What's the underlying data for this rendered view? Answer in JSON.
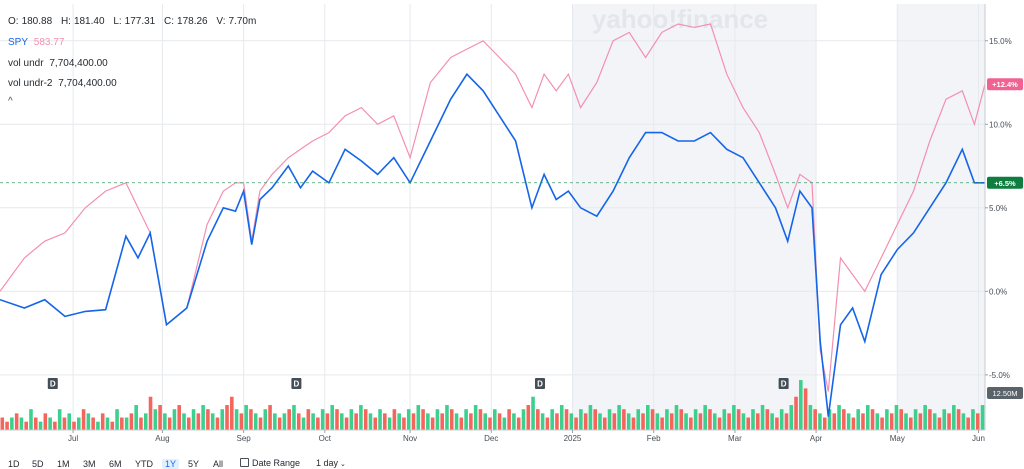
{
  "watermark": "yahoo!finance",
  "header": {
    "ohlc": [
      {
        "label": "O:",
        "value": "180.88"
      },
      {
        "label": "H:",
        "value": "181.40"
      },
      {
        "label": "L:",
        "value": "177.31"
      },
      {
        "label": "C:",
        "value": "178.26"
      },
      {
        "label": "V:",
        "value": "7.70m"
      }
    ],
    "compare": {
      "symbol": "SPY",
      "price": "583.77"
    },
    "indicators": [
      {
        "name": "vol undr",
        "value": "7,704,400.00"
      },
      {
        "name": "vol undr-2",
        "value": "7,704,400.00"
      }
    ],
    "collapse_glyph": "^"
  },
  "range_buttons": [
    "1D",
    "5D",
    "1M",
    "3M",
    "6M",
    "YTD",
    "1Y",
    "5Y",
    "All"
  ],
  "active_range": "1Y",
  "date_range_label": "Date Range",
  "interval_label": "1 day",
  "colors": {
    "main": "#1565e8",
    "compare": "#f48fb1",
    "vol_up": "#3ccf8e",
    "vol_down": "#f4665c",
    "shade": "#f2f4f7",
    "grid": "#e6e9ed",
    "up_badge": "#0f7d3f",
    "compare_badge": "#f06292",
    "dividend_marker": "#454d56"
  },
  "chart_data": {
    "type": "line",
    "title": "",
    "y_axis": {
      "ticks": [
        "15.0%",
        "10.0%",
        "5.0%",
        "0.0%",
        "-5.0%"
      ],
      "tick_values": [
        15,
        10,
        5,
        0,
        -5
      ],
      "range": [
        -8.3,
        17.2
      ],
      "volume_tag": "12.50M"
    },
    "x_axis": {
      "labels": [
        "Jul",
        "Aug",
        "Sep",
        "Oct",
        "Nov",
        "Dec",
        "2025",
        "Feb",
        "Mar",
        "Apr",
        "May",
        "Jun"
      ],
      "label_months": [
        1.35,
        2.45,
        3.45,
        4.45,
        5.5,
        6.5,
        7.5,
        8.5,
        9.5,
        10.5,
        11.5,
        12.5
      ],
      "month_range": [
        0.45,
        12.58
      ]
    },
    "shaded_periods": [
      [
        7.5,
        10.5
      ],
      [
        11.5,
        12.58
      ]
    ],
    "dividend_markers": [
      1.1,
      4.1,
      7.1,
      10.1
    ],
    "dividend_label": "D",
    "series": [
      {
        "name": "",
        "last_label": "+6.5%",
        "points": [
          [
            0.45,
            -0.5
          ],
          [
            0.75,
            -1
          ],
          [
            1.0,
            -0.5
          ],
          [
            1.25,
            -1.5
          ],
          [
            1.5,
            -1.2
          ],
          [
            1.75,
            -1.1
          ],
          [
            2.0,
            3.3
          ],
          [
            2.15,
            2
          ],
          [
            2.3,
            3.5
          ],
          [
            2.5,
            -2
          ],
          [
            2.75,
            -1
          ],
          [
            3.0,
            3
          ],
          [
            3.2,
            5
          ],
          [
            3.35,
            4.8
          ],
          [
            3.45,
            6
          ],
          [
            3.55,
            2.8
          ],
          [
            3.65,
            5.5
          ],
          [
            3.8,
            6.2
          ],
          [
            4.0,
            7.5
          ],
          [
            4.15,
            6.2
          ],
          [
            4.3,
            7.2
          ],
          [
            4.5,
            6.5
          ],
          [
            4.7,
            8.5
          ],
          [
            4.9,
            7.8
          ],
          [
            5.1,
            7
          ],
          [
            5.3,
            8
          ],
          [
            5.5,
            6.5
          ],
          [
            5.75,
            9
          ],
          [
            6.0,
            11.5
          ],
          [
            6.2,
            13
          ],
          [
            6.4,
            12
          ],
          [
            6.6,
            10.5
          ],
          [
            6.8,
            9
          ],
          [
            7.0,
            5
          ],
          [
            7.15,
            7
          ],
          [
            7.3,
            5.5
          ],
          [
            7.45,
            6
          ],
          [
            7.6,
            5
          ],
          [
            7.8,
            4.5
          ],
          [
            8.0,
            6
          ],
          [
            8.2,
            8
          ],
          [
            8.4,
            9.5
          ],
          [
            8.6,
            9.5
          ],
          [
            8.8,
            9
          ],
          [
            9.0,
            9
          ],
          [
            9.2,
            9.5
          ],
          [
            9.4,
            8.5
          ],
          [
            9.6,
            8
          ],
          [
            9.8,
            6.5
          ],
          [
            10.0,
            5
          ],
          [
            10.15,
            3
          ],
          [
            10.3,
            6
          ],
          [
            10.45,
            5
          ],
          [
            10.55,
            -3
          ],
          [
            10.65,
            -7.5
          ],
          [
            10.8,
            -2
          ],
          [
            10.95,
            -1
          ],
          [
            11.1,
            -3
          ],
          [
            11.3,
            1
          ],
          [
            11.5,
            2.5
          ],
          [
            11.7,
            3.5
          ],
          [
            11.9,
            5
          ],
          [
            12.1,
            6.5
          ],
          [
            12.3,
            8.5
          ],
          [
            12.45,
            6.5
          ],
          [
            12.58,
            6.5
          ]
        ]
      },
      {
        "name": "SPY",
        "last_label": "+12.4%",
        "points": [
          [
            0.45,
            0
          ],
          [
            0.75,
            2
          ],
          [
            1.0,
            3
          ],
          [
            1.25,
            3.5
          ],
          [
            1.5,
            5
          ],
          [
            1.75,
            6
          ],
          [
            2.0,
            6.5
          ],
          [
            2.15,
            5
          ],
          [
            2.3,
            3.5
          ],
          [
            2.5,
            -2
          ],
          [
            2.75,
            -1
          ],
          [
            3.0,
            4
          ],
          [
            3.2,
            6
          ],
          [
            3.35,
            6.5
          ],
          [
            3.45,
            6.5
          ],
          [
            3.55,
            3
          ],
          [
            3.65,
            6
          ],
          [
            3.8,
            7
          ],
          [
            4.0,
            8
          ],
          [
            4.15,
            8.5
          ],
          [
            4.3,
            9
          ],
          [
            4.5,
            9.5
          ],
          [
            4.7,
            10.5
          ],
          [
            4.9,
            11
          ],
          [
            5.1,
            10
          ],
          [
            5.3,
            10.5
          ],
          [
            5.5,
            8
          ],
          [
            5.75,
            12.5
          ],
          [
            6.0,
            14
          ],
          [
            6.2,
            14.5
          ],
          [
            6.4,
            15
          ],
          [
            6.6,
            14
          ],
          [
            6.8,
            13
          ],
          [
            7.0,
            11
          ],
          [
            7.15,
            13
          ],
          [
            7.3,
            12
          ],
          [
            7.45,
            13
          ],
          [
            7.6,
            11
          ],
          [
            7.8,
            12.5
          ],
          [
            8.0,
            15
          ],
          [
            8.2,
            15.5
          ],
          [
            8.4,
            14
          ],
          [
            8.6,
            15.5
          ],
          [
            8.8,
            16
          ],
          [
            9.0,
            15.8
          ],
          [
            9.2,
            16
          ],
          [
            9.4,
            13
          ],
          [
            9.6,
            11
          ],
          [
            9.8,
            9.5
          ],
          [
            10.0,
            7
          ],
          [
            10.15,
            5
          ],
          [
            10.3,
            7
          ],
          [
            10.45,
            6.5
          ],
          [
            10.55,
            -3.5
          ],
          [
            10.65,
            -6
          ],
          [
            10.8,
            2
          ],
          [
            10.95,
            1
          ],
          [
            11.1,
            0
          ],
          [
            11.3,
            2
          ],
          [
            11.5,
            4
          ],
          [
            11.7,
            6
          ],
          [
            11.9,
            9
          ],
          [
            12.1,
            11.5
          ],
          [
            12.3,
            12
          ],
          [
            12.45,
            10
          ],
          [
            12.58,
            12.4
          ]
        ]
      }
    ],
    "volume": {
      "max": 12.5,
      "bars": [
        [
          0,
          3
        ],
        [
          0,
          2
        ],
        [
          1,
          3
        ],
        [
          0,
          4
        ],
        [
          1,
          3
        ],
        [
          0,
          2
        ],
        [
          1,
          5
        ],
        [
          0,
          3
        ],
        [
          1,
          2
        ],
        [
          0,
          4
        ],
        [
          1,
          3
        ],
        [
          0,
          2
        ],
        [
          1,
          5
        ],
        [
          0,
          3
        ],
        [
          1,
          4
        ],
        [
          0,
          2
        ],
        [
          1,
          3
        ],
        [
          0,
          5
        ],
        [
          1,
          4
        ],
        [
          0,
          3
        ],
        [
          1,
          2
        ],
        [
          0,
          4
        ],
        [
          1,
          3
        ],
        [
          0,
          2
        ],
        [
          1,
          5
        ],
        [
          0,
          3
        ],
        [
          1,
          3
        ],
        [
          0,
          4
        ],
        [
          1,
          6
        ],
        [
          0,
          3
        ],
        [
          1,
          4
        ],
        [
          0,
          8
        ],
        [
          1,
          5
        ],
        [
          0,
          6
        ],
        [
          1,
          4
        ],
        [
          0,
          3
        ],
        [
          1,
          5
        ],
        [
          0,
          6
        ],
        [
          1,
          4
        ],
        [
          0,
          3
        ],
        [
          1,
          5
        ],
        [
          0,
          4
        ],
        [
          1,
          6
        ],
        [
          0,
          5
        ],
        [
          1,
          4
        ],
        [
          0,
          3
        ],
        [
          1,
          5
        ],
        [
          0,
          6
        ],
        [
          0,
          8
        ],
        [
          1,
          5
        ],
        [
          0,
          4
        ],
        [
          1,
          6
        ],
        [
          0,
          5
        ],
        [
          1,
          4
        ],
        [
          0,
          3
        ],
        [
          1,
          5
        ],
        [
          0,
          6
        ],
        [
          1,
          4
        ],
        [
          0,
          3
        ],
        [
          1,
          4
        ],
        [
          0,
          5
        ],
        [
          1,
          6
        ],
        [
          0,
          4
        ],
        [
          1,
          3
        ],
        [
          0,
          5
        ],
        [
          1,
          4
        ],
        [
          0,
          3
        ],
        [
          1,
          5
        ],
        [
          0,
          4
        ],
        [
          1,
          6
        ],
        [
          0,
          5
        ],
        [
          1,
          4
        ],
        [
          0,
          3
        ],
        [
          1,
          5
        ],
        [
          0,
          4
        ],
        [
          1,
          6
        ],
        [
          0,
          5
        ],
        [
          1,
          4
        ],
        [
          0,
          3
        ],
        [
          1,
          5
        ],
        [
          0,
          4
        ],
        [
          1,
          3
        ],
        [
          0,
          5
        ],
        [
          1,
          4
        ],
        [
          0,
          3
        ],
        [
          1,
          5
        ],
        [
          0,
          4
        ],
        [
          1,
          6
        ],
        [
          0,
          5
        ],
        [
          1,
          4
        ],
        [
          0,
          3
        ],
        [
          1,
          5
        ],
        [
          0,
          4
        ],
        [
          1,
          6
        ],
        [
          0,
          5
        ],
        [
          1,
          4
        ],
        [
          0,
          3
        ],
        [
          1,
          5
        ],
        [
          0,
          4
        ],
        [
          1,
          6
        ],
        [
          0,
          5
        ],
        [
          1,
          4
        ],
        [
          0,
          3
        ],
        [
          1,
          5
        ],
        [
          0,
          4
        ],
        [
          1,
          3
        ],
        [
          0,
          5
        ],
        [
          1,
          4
        ],
        [
          0,
          3
        ],
        [
          1,
          5
        ],
        [
          0,
          6
        ],
        [
          1,
          8
        ],
        [
          0,
          5
        ],
        [
          1,
          4
        ],
        [
          0,
          3
        ],
        [
          1,
          5
        ],
        [
          0,
          4
        ],
        [
          1,
          6
        ],
        [
          0,
          5
        ],
        [
          1,
          4
        ],
        [
          0,
          3
        ],
        [
          1,
          5
        ],
        [
          0,
          4
        ],
        [
          1,
          6
        ],
        [
          0,
          5
        ],
        [
          1,
          4
        ],
        [
          0,
          3
        ],
        [
          1,
          5
        ],
        [
          0,
          4
        ],
        [
          1,
          6
        ],
        [
          0,
          5
        ],
        [
          1,
          4
        ],
        [
          0,
          3
        ],
        [
          1,
          5
        ],
        [
          0,
          4
        ],
        [
          1,
          6
        ],
        [
          0,
          5
        ],
        [
          1,
          4
        ],
        [
          0,
          3
        ],
        [
          1,
          5
        ],
        [
          0,
          4
        ],
        [
          1,
          6
        ],
        [
          0,
          5
        ],
        [
          1,
          4
        ],
        [
          0,
          3
        ],
        [
          1,
          5
        ],
        [
          0,
          4
        ],
        [
          1,
          6
        ],
        [
          0,
          5
        ],
        [
          1,
          4
        ],
        [
          0,
          3
        ],
        [
          1,
          5
        ],
        [
          0,
          4
        ],
        [
          1,
          6
        ],
        [
          0,
          5
        ],
        [
          1,
          4
        ],
        [
          0,
          3
        ],
        [
          1,
          5
        ],
        [
          0,
          4
        ],
        [
          1,
          6
        ],
        [
          0,
          5
        ],
        [
          1,
          4
        ],
        [
          0,
          3
        ],
        [
          1,
          5
        ],
        [
          0,
          4
        ],
        [
          1,
          6
        ],
        [
          0,
          8
        ],
        [
          1,
          12
        ],
        [
          0,
          10
        ],
        [
          1,
          6
        ],
        [
          0,
          5
        ],
        [
          1,
          4
        ],
        [
          0,
          3
        ],
        [
          1,
          5
        ],
        [
          0,
          4
        ],
        [
          1,
          6
        ],
        [
          0,
          5
        ],
        [
          1,
          4
        ],
        [
          0,
          3
        ],
        [
          1,
          5
        ],
        [
          0,
          4
        ],
        [
          1,
          6
        ],
        [
          0,
          5
        ],
        [
          1,
          4
        ],
        [
          0,
          3
        ],
        [
          1,
          5
        ],
        [
          0,
          4
        ],
        [
          1,
          6
        ],
        [
          0,
          5
        ],
        [
          1,
          4
        ],
        [
          0,
          3
        ],
        [
          1,
          5
        ],
        [
          0,
          4
        ],
        [
          1,
          6
        ],
        [
          0,
          5
        ],
        [
          1,
          4
        ],
        [
          0,
          3
        ],
        [
          1,
          5
        ],
        [
          0,
          4
        ],
        [
          1,
          6
        ],
        [
          0,
          5
        ],
        [
          1,
          4
        ],
        [
          0,
          3
        ],
        [
          1,
          5
        ],
        [
          0,
          4
        ],
        [
          1,
          6
        ]
      ]
    }
  }
}
